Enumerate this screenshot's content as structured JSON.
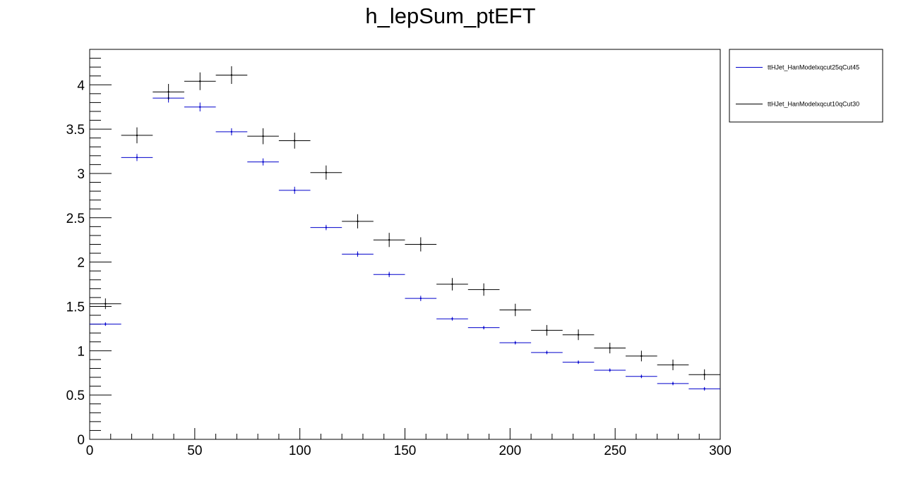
{
  "chart_data": {
    "type": "scatter",
    "title": "h_lepSum_ptEFT",
    "xlabel": "",
    "ylabel": "",
    "xlim": [
      0,
      300
    ],
    "ylim": [
      0,
      4.4
    ],
    "x_ticks": [
      "0",
      "50",
      "100",
      "150",
      "200",
      "250",
      "300"
    ],
    "y_ticks": [
      "0",
      "0.5",
      "1",
      "1.5",
      "2",
      "2.5",
      "3",
      "3.5",
      "4"
    ],
    "grid": false,
    "legend_position": "top-right, outside plot",
    "bin_width": 15,
    "x": [
      7.5,
      22.5,
      37.5,
      52.5,
      67.5,
      82.5,
      97.5,
      112.5,
      127.5,
      142.5,
      157.5,
      172.5,
      187.5,
      202.5,
      217.5,
      232.5,
      247.5,
      262.5,
      277.5,
      292.5
    ],
    "series": [
      {
        "name": "ttHJet_HanModelxqcut25qCut45",
        "color": "#0000cc",
        "values": [
          1.3,
          3.18,
          3.85,
          3.75,
          3.47,
          3.13,
          2.81,
          2.39,
          2.09,
          1.86,
          1.59,
          1.36,
          1.26,
          1.09,
          0.98,
          0.87,
          0.78,
          0.71,
          0.63,
          0.57
        ],
        "errors": [
          0.02,
          0.04,
          0.05,
          0.05,
          0.04,
          0.04,
          0.04,
          0.03,
          0.03,
          0.03,
          0.03,
          0.02,
          0.02,
          0.02,
          0.02,
          0.02,
          0.02,
          0.02,
          0.02,
          0.02
        ]
      },
      {
        "name": "ttHJet_HanModelxqcut10qCut30",
        "color": "#000000",
        "values": [
          1.53,
          3.43,
          3.92,
          4.04,
          4.11,
          3.42,
          3.37,
          3.01,
          2.46,
          2.25,
          2.2,
          1.75,
          1.69,
          1.46,
          1.23,
          1.18,
          1.03,
          0.94,
          0.84,
          0.73
        ],
        "errors": [
          0.06,
          0.09,
          0.09,
          0.1,
          0.1,
          0.09,
          0.09,
          0.08,
          0.08,
          0.08,
          0.08,
          0.07,
          0.07,
          0.07,
          0.06,
          0.06,
          0.06,
          0.06,
          0.06,
          0.06
        ]
      }
    ]
  }
}
